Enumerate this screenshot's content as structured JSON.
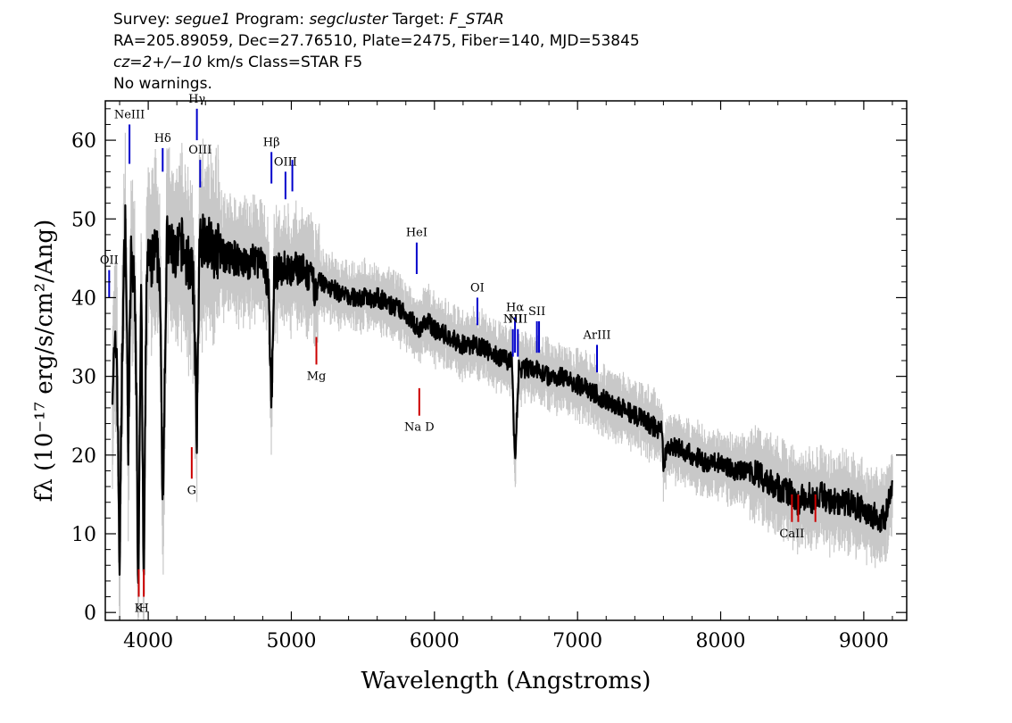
{
  "header": {
    "l1": {
      "survey_label": "Survey: ",
      "survey": "segue1",
      "program_label": " Program: ",
      "program": "segcluster",
      "target_label": " Target: ",
      "target": "F_STAR"
    },
    "l2": "RA=205.89059, Dec=27.76510, Plate=2475, Fiber=140, MJD=53845",
    "l3": {
      "cz": "cz=2+/−10",
      "rest": " km/s Class=STAR F5"
    },
    "l4": "No warnings."
  },
  "chart_data": {
    "type": "line",
    "xlabel": "Wavelength (Angstroms)",
    "ylabel": "fλ (10⁻¹⁷ erg/s/cm²/Ang)",
    "xlim": [
      3700,
      9300
    ],
    "ylim": [
      -1,
      65
    ],
    "x_ticks": [
      4000,
      5000,
      6000,
      7000,
      8000,
      9000
    ],
    "y_ticks": [
      0,
      10,
      20,
      30,
      40,
      50,
      60
    ],
    "series": [
      {
        "color": "#000000",
        "points": [
          [
            3750,
            30
          ],
          [
            3780,
            34
          ],
          [
            3800,
            6
          ],
          [
            3820,
            35
          ],
          [
            3840,
            50
          ],
          [
            3860,
            22
          ],
          [
            3880,
            45
          ],
          [
            3910,
            40
          ],
          [
            3930,
            3
          ],
          [
            3950,
            44
          ],
          [
            3968,
            2
          ],
          [
            3990,
            45
          ],
          [
            4020,
            44
          ],
          [
            4050,
            46
          ],
          [
            4080,
            44
          ],
          [
            4101,
            14
          ],
          [
            4130,
            47
          ],
          [
            4170,
            46
          ],
          [
            4200,
            45
          ],
          [
            4230,
            47
          ],
          [
            4260,
            45
          ],
          [
            4300,
            44
          ],
          [
            4320,
            40
          ],
          [
            4340,
            23
          ],
          [
            4360,
            47
          ],
          [
            4400,
            48
          ],
          [
            4450,
            46
          ],
          [
            4500,
            46
          ],
          [
            4550,
            45
          ],
          [
            4600,
            45
          ],
          [
            4650,
            45
          ],
          [
            4700,
            44
          ],
          [
            4750,
            45
          ],
          [
            4800,
            44
          ],
          [
            4840,
            42
          ],
          [
            4861,
            26
          ],
          [
            4880,
            43
          ],
          [
            4950,
            44
          ],
          [
            5000,
            43
          ],
          [
            5050,
            44
          ],
          [
            5100,
            43
          ],
          [
            5150,
            42
          ],
          [
            5183,
            40
          ],
          [
            5200,
            42
          ],
          [
            5300,
            41
          ],
          [
            5400,
            40
          ],
          [
            5500,
            40
          ],
          [
            5600,
            40
          ],
          [
            5700,
            39
          ],
          [
            5800,
            38
          ],
          [
            5890,
            36
          ],
          [
            5950,
            37
          ],
          [
            6000,
            36
          ],
          [
            6100,
            35
          ],
          [
            6200,
            34
          ],
          [
            6300,
            34
          ],
          [
            6400,
            33
          ],
          [
            6500,
            32
          ],
          [
            6540,
            32
          ],
          [
            6563,
            19
          ],
          [
            6590,
            31
          ],
          [
            6700,
            31
          ],
          [
            6800,
            30
          ],
          [
            6900,
            30
          ],
          [
            7000,
            29
          ],
          [
            7100,
            28
          ],
          [
            7200,
            27
          ],
          [
            7300,
            26
          ],
          [
            7400,
            25
          ],
          [
            7500,
            24
          ],
          [
            7590,
            23
          ],
          [
            7600,
            18
          ],
          [
            7620,
            21
          ],
          [
            7700,
            21
          ],
          [
            7800,
            20
          ],
          [
            7900,
            19
          ],
          [
            8000,
            19
          ],
          [
            8100,
            18
          ],
          [
            8200,
            18
          ],
          [
            8300,
            17
          ],
          [
            8400,
            16
          ],
          [
            8498,
            15
          ],
          [
            8542,
            14
          ],
          [
            8600,
            15
          ],
          [
            8662,
            14
          ],
          [
            8700,
            15
          ],
          [
            8800,
            14
          ],
          [
            8900,
            14
          ],
          [
            9000,
            13
          ],
          [
            9100,
            12
          ],
          [
            9150,
            12
          ],
          [
            9200,
            16
          ]
        ]
      }
    ],
    "noise_band": {
      "color": "#c8c8c8"
    },
    "emission_lines": [
      {
        "label": "NeIII",
        "x": 3869,
        "y0": 57,
        "y1": 62,
        "color": "#0000cc"
      },
      {
        "label": "Hδ",
        "x": 4101,
        "y0": 56,
        "y1": 59,
        "color": "#0000cc"
      },
      {
        "label": "Hγ",
        "x": 4340,
        "y0": 60,
        "y1": 64,
        "color": "#0000cc"
      },
      {
        "label": "OIII",
        "x": 4363,
        "y0": 54,
        "y1": 57.5,
        "color": "#0000cc"
      },
      {
        "label": "Hβ",
        "x": 4861,
        "y0": 54.5,
        "y1": 58.5,
        "color": "#0000cc"
      },
      {
        "label": "OIII",
        "x": 4959,
        "y0": 52.5,
        "y1": 56,
        "color": "#0000cc"
      },
      {
        "label": "",
        "x": 5007,
        "y0": 53.5,
        "y1": 57.5,
        "color": "#0000cc"
      },
      {
        "label": "HeI",
        "x": 5876,
        "y0": 43,
        "y1": 47,
        "color": "#0000cc"
      },
      {
        "label": "OI",
        "x": 6300,
        "y0": 36.5,
        "y1": 40,
        "color": "#0000cc"
      },
      {
        "label": "NII",
        "x": 6548,
        "y0": 32.5,
        "y1": 36,
        "color": "#0000cc"
      },
      {
        "label": "Hα",
        "x": 6563,
        "y0": 33,
        "y1": 37.5,
        "color": "#0000cc"
      },
      {
        "label": "NII",
        "x": 6583,
        "y0": 32.5,
        "y1": 36,
        "color": "#0000cc"
      },
      {
        "label": "SII",
        "x": 6716,
        "y0": 33,
        "y1": 37,
        "color": "#0000cc"
      },
      {
        "label": "",
        "x": 6731,
        "y0": 33,
        "y1": 37,
        "color": "#0000cc"
      },
      {
        "label": "ArIII",
        "x": 7136,
        "y0": 30.5,
        "y1": 34,
        "color": "#0000cc"
      },
      {
        "label": "OII",
        "x": 3727,
        "y0": 40,
        "y1": 43.5,
        "color": "#0000cc"
      }
    ],
    "absorption_lines": [
      {
        "label": "K",
        "x": 3934,
        "y0": 2,
        "y1": 5.5,
        "color": "#cc0000"
      },
      {
        "label": "H",
        "x": 3969,
        "y0": 2,
        "y1": 5.5,
        "color": "#cc0000"
      },
      {
        "label": "G",
        "x": 4304,
        "y0": 17,
        "y1": 21,
        "color": "#cc0000"
      },
      {
        "label": "Mg",
        "x": 5175,
        "y0": 31.5,
        "y1": 35,
        "color": "#cc0000"
      },
      {
        "label": "Na D",
        "x": 5894,
        "y0": 25,
        "y1": 28.5,
        "color": "#cc0000"
      },
      {
        "label": "CaII",
        "x": 8498,
        "y0": 11.5,
        "y1": 15,
        "color": "#cc0000"
      },
      {
        "label": "",
        "x": 8542,
        "y0": 11.5,
        "y1": 15,
        "color": "#cc0000"
      },
      {
        "label": "",
        "x": 8662,
        "y0": 11.5,
        "y1": 15,
        "color": "#cc0000"
      }
    ]
  }
}
